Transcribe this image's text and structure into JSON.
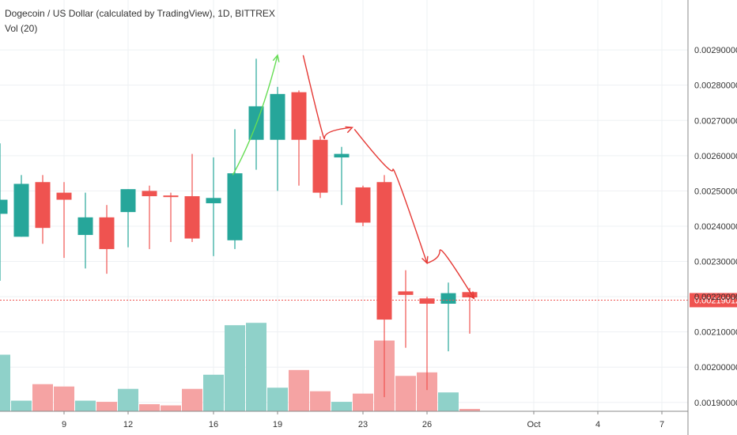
{
  "header": {
    "title": "Dogecoin / US Dollar (calculated by TradingView), 1D, BITTREX",
    "volume_indicator": "Vol (20)"
  },
  "current_price": {
    "label": "0.00219012",
    "value": 0.00219012,
    "color": "#ef5350"
  },
  "colors": {
    "up": "#26a69a",
    "down": "#ef5350",
    "up_volume": "#8fd1c9",
    "down_volume": "#f5a3a3",
    "grid": "#eef0f3",
    "trend_up_arrow": "#66dd55",
    "trend_down_arrow": "#e53935"
  },
  "chart_data": {
    "type": "candlestick",
    "price_axis": {
      "min": 0.00183,
      "max": 0.00299,
      "ticks": [
        "0.00190000",
        "0.00200000",
        "0.00210000",
        "0.00220000",
        "0.00230000",
        "0.00240000",
        "0.00250000",
        "0.00260000",
        "0.00270000",
        "0.00280000",
        "0.00290000"
      ]
    },
    "x_axis": {
      "tick_labels": [
        {
          "label": "9",
          "index": 3
        },
        {
          "label": "12",
          "index": 6
        },
        {
          "label": "16",
          "index": 10
        },
        {
          "label": "19",
          "index": 13
        },
        {
          "label": "23",
          "index": 17
        },
        {
          "label": "26",
          "index": 20
        },
        {
          "label": "Oct",
          "index": 25
        },
        {
          "label": "4",
          "index": 28
        },
        {
          "label": "7",
          "index": 31
        }
      ]
    },
    "candles": [
      {
        "open": 0.002435,
        "close": 0.002475,
        "high": 0.002635,
        "low": 0.002245
      },
      {
        "open": 0.00237,
        "close": 0.00252,
        "high": 0.002545,
        "low": 0.00237
      },
      {
        "open": 0.002525,
        "close": 0.002395,
        "high": 0.002545,
        "low": 0.00235
      },
      {
        "open": 0.002495,
        "close": 0.002475,
        "high": 0.002525,
        "low": 0.00231
      },
      {
        "open": 0.002375,
        "close": 0.002425,
        "high": 0.002495,
        "low": 0.00228
      },
      {
        "open": 0.002425,
        "close": 0.002335,
        "high": 0.00246,
        "low": 0.002265
      },
      {
        "open": 0.00244,
        "close": 0.002505,
        "high": 0.002505,
        "low": 0.00234
      },
      {
        "open": 0.0025,
        "close": 0.002485,
        "high": 0.002515,
        "low": 0.002335
      },
      {
        "open": 0.002487,
        "close": 0.002483,
        "high": 0.002495,
        "low": 0.002355
      },
      {
        "open": 0.002485,
        "close": 0.002365,
        "high": 0.002605,
        "low": 0.002355
      },
      {
        "open": 0.002465,
        "close": 0.00248,
        "high": 0.002595,
        "low": 0.002315
      },
      {
        "open": 0.00236,
        "close": 0.00255,
        "high": 0.002675,
        "low": 0.002335
      },
      {
        "open": 0.002645,
        "close": 0.00274,
        "high": 0.002875,
        "low": 0.00256
      },
      {
        "open": 0.002645,
        "close": 0.002775,
        "high": 0.002795,
        "low": 0.0025
      },
      {
        "open": 0.00278,
        "close": 0.002645,
        "high": 0.002785,
        "low": 0.002515
      },
      {
        "open": 0.002645,
        "close": 0.002495,
        "high": 0.002655,
        "low": 0.00248
      },
      {
        "open": 0.002595,
        "close": 0.002605,
        "high": 0.002625,
        "low": 0.00246
      },
      {
        "open": 0.00251,
        "close": 0.00241,
        "high": 0.002515,
        "low": 0.0024
      },
      {
        "open": 0.002525,
        "close": 0.002135,
        "high": 0.002545,
        "low": 0.001915
      },
      {
        "open": 0.002215,
        "close": 0.002205,
        "high": 0.002275,
        "low": 0.002055
      },
      {
        "open": 0.002195,
        "close": 0.00218,
        "high": 0.0022,
        "low": 0.001935
      },
      {
        "open": 0.00218,
        "close": 0.00221,
        "high": 0.00224,
        "low": 0.002045
      },
      {
        "open": 0.002213,
        "close": 0.002198,
        "high": 0.002225,
        "low": 0.002095
      }
    ],
    "volume": [
      0.48,
      0.09,
      0.23,
      0.21,
      0.09,
      0.08,
      0.19,
      0.06,
      0.05,
      0.19,
      0.31,
      0.73,
      0.75,
      0.2,
      0.35,
      0.17,
      0.08,
      0.15,
      0.6,
      0.3,
      0.33,
      0.16,
      0.02
    ],
    "annotations": [
      {
        "type": "arrow",
        "color": "trend_up_arrow",
        "points": [
          [
            10.9,
            0.002545
          ],
          [
            13.0,
            0.002885
          ]
        ]
      },
      {
        "type": "arrow",
        "color": "trend_down_arrow",
        "points": [
          [
            14.2,
            0.002885
          ],
          [
            15.2,
            0.00265
          ],
          [
            16.5,
            0.00268
          ]
        ]
      },
      {
        "type": "arrow",
        "color": "trend_down_arrow",
        "points": [
          [
            16.6,
            0.002675
          ],
          [
            18.4,
            0.00256
          ],
          [
            20.0,
            0.002295
          ]
        ]
      },
      {
        "type": "arrow",
        "color": "trend_down_arrow",
        "points": [
          [
            20.0,
            0.002295
          ],
          [
            20.6,
            0.00233
          ],
          [
            22.2,
            0.002195
          ]
        ]
      }
    ]
  }
}
